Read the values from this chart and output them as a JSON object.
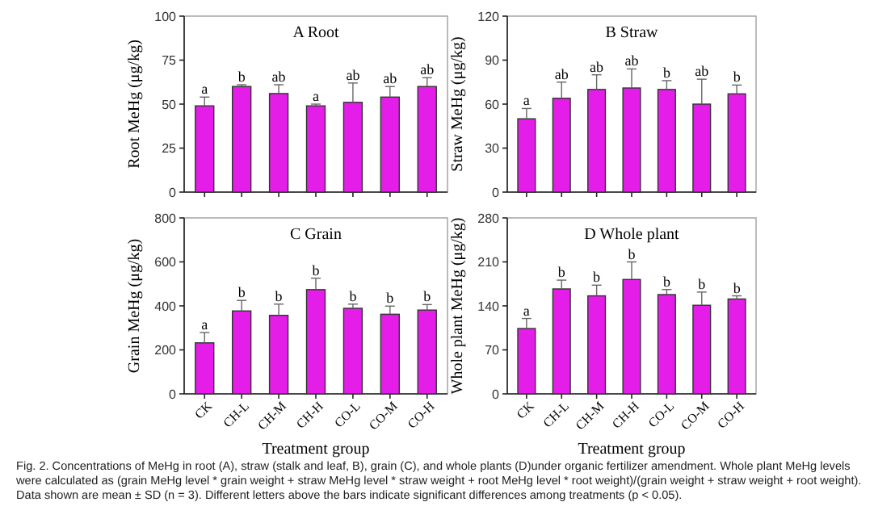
{
  "chart_data": [
    {
      "type": "bar",
      "title": "A Root",
      "ylabel": "Root MeHg (μg/kg)",
      "categories": [
        null,
        null,
        null,
        null,
        null,
        null,
        null
      ],
      "values": [
        49,
        60,
        56,
        49,
        51,
        54,
        60
      ],
      "errors": [
        5,
        1,
        5,
        1,
        11,
        6,
        5
      ],
      "value_labels": [
        "a",
        "b",
        "ab",
        "a",
        "ab",
        "ab",
        "ab"
      ],
      "color": "#e41ee8",
      "ylim": [
        0,
        100
      ],
      "yticks": [
        0,
        25,
        50,
        75,
        100
      ],
      "grid": false,
      "annotations": [
        "Fig. 2. Concentrations of MeHg in root (A), straw (stalk and leaf, B), grain (C), and whole plants (D)under organic fertilizer amendment. Whole plant MeHg levels were calculated as (grain MeHg level * grain weight + straw MeHg level * straw weight + root MeHg level * root weight)/(grain weight + straw weight + root weight). Data shown are mean ± SD (n = 3). Different letters above the bars indicate significant differences among treatments (p < 0.05)."
      ]
    },
    {
      "type": "bar",
      "title": "B Straw",
      "ylabel": "Straw MeHg (μg/kg)",
      "categories": [
        null,
        null,
        null,
        null,
        null,
        null,
        null
      ],
      "values": [
        50,
        64,
        70,
        71,
        70,
        60,
        67
      ],
      "errors": [
        7,
        11,
        10,
        13,
        6,
        17,
        6
      ],
      "value_labels": [
        "a",
        "ab",
        "ab",
        "ab",
        "b",
        "ab",
        "b"
      ],
      "color": "#e41ee8",
      "ylim": [
        0,
        120
      ],
      "yticks": [
        0,
        30,
        60,
        90,
        120
      ],
      "grid": false
    },
    {
      "type": "bar",
      "title": "C Grain",
      "ylabel": "Grain MeHg (μg/kg)",
      "xlabel": "Treatment group",
      "categories": [
        "CK",
        "CH-L",
        "CH-M",
        "CH-H",
        "CO-L",
        "CO-M",
        "CO-H"
      ],
      "values": [
        232,
        377,
        357,
        474,
        389,
        362,
        381
      ],
      "errors": [
        47,
        48,
        51,
        52,
        19,
        37,
        25
      ],
      "value_labels": [
        "a",
        "b",
        "b",
        "b",
        "b",
        "b",
        "b"
      ],
      "color": "#e41ee8",
      "ylim": [
        0,
        800
      ],
      "yticks": [
        0,
        200,
        400,
        600,
        800
      ],
      "grid": false
    },
    {
      "type": "bar",
      "title": "D Whole plant",
      "ylabel": "Whole plant MeHg (μg/kg)",
      "xlabel": "Treatment group",
      "categories": [
        "CK",
        "CH-L",
        "CH-M",
        "CH-H",
        "CO-L",
        "CO-M",
        "CO-H"
      ],
      "values": [
        104,
        167,
        156,
        182,
        158,
        141,
        151
      ],
      "errors": [
        16,
        14,
        17,
        28,
        8,
        21,
        5
      ],
      "value_labels": [
        "a",
        "b",
        "b",
        "b",
        "b",
        "b",
        "b"
      ],
      "color": "#e41ee8",
      "ylim": [
        0,
        280
      ],
      "yticks": [
        0,
        70,
        140,
        210,
        280
      ],
      "grid": false
    }
  ]
}
